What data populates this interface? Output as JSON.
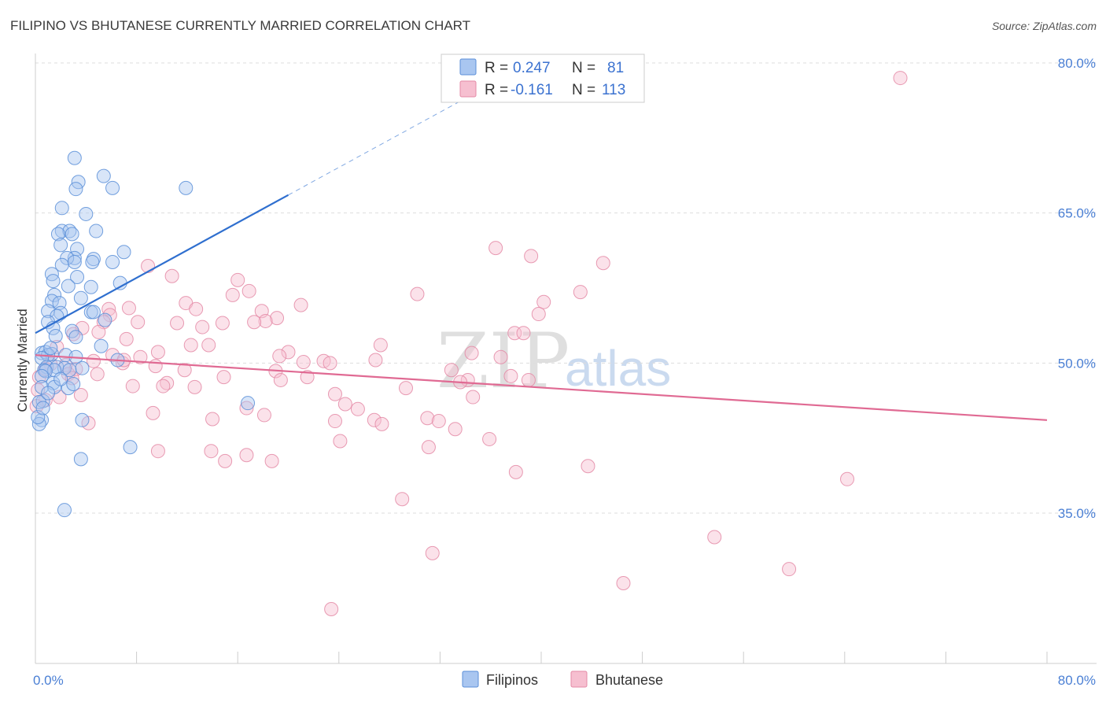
{
  "title": "FILIPINO VS BHUTANESE CURRENTLY MARRIED CORRELATION CHART",
  "source": "Source: ZipAtlas.com",
  "watermark": {
    "part1": "ZIP",
    "part2": "atlas"
  },
  "colors": {
    "filipinos_fill": "#a9c6f0",
    "filipinos_stroke": "#5b8fd8",
    "filipinos_line": "#2f6fcf",
    "bhutanese_fill": "#f6bfd0",
    "bhutanese_stroke": "#e48aa6",
    "bhutanese_line": "#e06a93",
    "tick_label": "#4a7fd4",
    "grid": "#dddddd"
  },
  "legend": {
    "rows": [
      {
        "r_label": "R =",
        "r_value": "0.247",
        "n_label": "N =",
        "n_value": "81"
      },
      {
        "r_label": "R =",
        "r_value": "-0.161",
        "n_label": "N =",
        "n_value": "113"
      }
    ]
  },
  "bottom_legend": [
    "Filipinos",
    "Bhutanese"
  ],
  "chart_data": {
    "type": "scatter",
    "title": "FILIPINO VS BHUTANESE CURRENTLY MARRIED CORRELATION CHART",
    "xlabel": "",
    "ylabel": "Currently Married",
    "xlim": [
      0,
      80
    ],
    "ylim": [
      20,
      83
    ],
    "x_tick_labels": [
      "0.0%",
      "80.0%"
    ],
    "y_ticks": [
      35,
      50,
      65,
      80
    ],
    "y_tick_labels": [
      "35.0%",
      "50.0%",
      "65.0%",
      "80.0%"
    ],
    "grid": true,
    "series": [
      {
        "name": "Filipinos",
        "R": 0.247,
        "N": 81,
        "trend": {
          "x": [
            0,
            20
          ],
          "y": [
            53.0,
            66.8
          ],
          "dashed_extension_to_x": 34
        },
        "points": [
          [
            3.1,
            70.5
          ],
          [
            5.4,
            68.7
          ],
          [
            3.4,
            68.1
          ],
          [
            6.1,
            67.5
          ],
          [
            11.9,
            67.5
          ],
          [
            3.2,
            67.4
          ],
          [
            2.1,
            65.5
          ],
          [
            4.0,
            64.9
          ],
          [
            2.1,
            63.2
          ],
          [
            2.7,
            63.2
          ],
          [
            4.8,
            63.2
          ],
          [
            2.9,
            62.9
          ],
          [
            1.8,
            62.9
          ],
          [
            2.0,
            61.8
          ],
          [
            3.3,
            61.4
          ],
          [
            7.0,
            61.1
          ],
          [
            3.1,
            60.5
          ],
          [
            4.6,
            60.4
          ],
          [
            2.5,
            60.5
          ],
          [
            3.1,
            60.1
          ],
          [
            6.1,
            60.1
          ],
          [
            4.5,
            60.1
          ],
          [
            2.1,
            59.8
          ],
          [
            1.3,
            58.9
          ],
          [
            3.3,
            58.6
          ],
          [
            1.4,
            58.2
          ],
          [
            2.6,
            57.7
          ],
          [
            6.7,
            58.0
          ],
          [
            4.4,
            57.6
          ],
          [
            1.5,
            56.8
          ],
          [
            1.3,
            56.2
          ],
          [
            3.6,
            56.5
          ],
          [
            1.9,
            56.0
          ],
          [
            1.0,
            55.2
          ],
          [
            4.4,
            55.1
          ],
          [
            4.6,
            55.1
          ],
          [
            2.0,
            55.0
          ],
          [
            1.7,
            54.7
          ],
          [
            5.5,
            54.3
          ],
          [
            1.0,
            54.1
          ],
          [
            1.4,
            53.5
          ],
          [
            2.9,
            53.2
          ],
          [
            1.6,
            52.7
          ],
          [
            3.2,
            52.6
          ],
          [
            5.2,
            51.7
          ],
          [
            0.5,
            51.0
          ],
          [
            0.8,
            51.1
          ],
          [
            1.3,
            50.9
          ],
          [
            1.0,
            50.8
          ],
          [
            2.4,
            50.8
          ],
          [
            0.5,
            50.5
          ],
          [
            3.2,
            50.6
          ],
          [
            6.5,
            50.3
          ],
          [
            0.9,
            49.6
          ],
          [
            1.7,
            49.6
          ],
          [
            2.3,
            49.5
          ],
          [
            3.7,
            49.5
          ],
          [
            0.7,
            49.3
          ],
          [
            1.5,
            49.3
          ],
          [
            2.7,
            49.3
          ],
          [
            0.8,
            49.2
          ],
          [
            0.5,
            48.7
          ],
          [
            1.4,
            48.0
          ],
          [
            0.5,
            47.6
          ],
          [
            2.6,
            47.5
          ],
          [
            1.5,
            47.6
          ],
          [
            0.6,
            46.2
          ],
          [
            0.3,
            46.1
          ],
          [
            16.8,
            46.0
          ],
          [
            0.5,
            44.3
          ],
          [
            3.7,
            44.3
          ],
          [
            0.3,
            43.9
          ],
          [
            7.5,
            41.6
          ],
          [
            3.6,
            40.4
          ],
          [
            2.3,
            35.3
          ],
          [
            1.0,
            47.0
          ],
          [
            0.2,
            44.6
          ],
          [
            0.6,
            45.5
          ],
          [
            2.0,
            48.4
          ],
          [
            3.0,
            47.9
          ],
          [
            1.2,
            51.5
          ]
        ]
      },
      {
        "name": "Bhutanese",
        "R": -0.161,
        "N": 113,
        "trend": {
          "x": [
            0,
            80
          ],
          "y": [
            50.8,
            44.3
          ]
        },
        "points": [
          [
            68.4,
            78.5
          ],
          [
            36.4,
            61.5
          ],
          [
            39.2,
            60.7
          ],
          [
            44.9,
            60.0
          ],
          [
            8.9,
            59.7
          ],
          [
            10.8,
            58.7
          ],
          [
            16.0,
            58.3
          ],
          [
            16.9,
            57.2
          ],
          [
            15.6,
            56.8
          ],
          [
            30.2,
            56.9
          ],
          [
            43.1,
            57.1
          ],
          [
            40.2,
            56.1
          ],
          [
            11.9,
            56.0
          ],
          [
            21.0,
            55.8
          ],
          [
            7.4,
            55.5
          ],
          [
            5.8,
            55.4
          ],
          [
            12.7,
            55.4
          ],
          [
            17.9,
            55.2
          ],
          [
            5.9,
            54.8
          ],
          [
            39.8,
            54.9
          ],
          [
            19.1,
            54.5
          ],
          [
            18.2,
            54.2
          ],
          [
            8.1,
            54.1
          ],
          [
            17.3,
            54.1
          ],
          [
            14.8,
            54.0
          ],
          [
            11.2,
            54.0
          ],
          [
            5.4,
            54.1
          ],
          [
            3.7,
            53.5
          ],
          [
            13.2,
            53.6
          ],
          [
            37.9,
            53.0
          ],
          [
            38.6,
            53.0
          ],
          [
            3.0,
            52.9
          ],
          [
            7.2,
            52.4
          ],
          [
            27.3,
            51.8
          ],
          [
            12.3,
            51.8
          ],
          [
            13.7,
            51.8
          ],
          [
            9.7,
            51.1
          ],
          [
            20.0,
            51.1
          ],
          [
            34.5,
            51.0
          ],
          [
            6.1,
            50.8
          ],
          [
            19.3,
            50.7
          ],
          [
            8.3,
            50.6
          ],
          [
            36.8,
            50.6
          ],
          [
            26.9,
            50.3
          ],
          [
            21.2,
            50.1
          ],
          [
            22.8,
            50.2
          ],
          [
            23.3,
            50.0
          ],
          [
            9.5,
            49.7
          ],
          [
            6.9,
            50.0
          ],
          [
            2.4,
            49.8
          ],
          [
            3.2,
            49.4
          ],
          [
            11.8,
            49.3
          ],
          [
            19.0,
            49.2
          ],
          [
            32.9,
            49.3
          ],
          [
            4.9,
            48.9
          ],
          [
            14.9,
            48.6
          ],
          [
            21.5,
            48.6
          ],
          [
            37.6,
            48.7
          ],
          [
            19.4,
            48.3
          ],
          [
            34.2,
            48.3
          ],
          [
            33.6,
            48.1
          ],
          [
            39.0,
            48.3
          ],
          [
            10.4,
            48.0
          ],
          [
            10.1,
            47.7
          ],
          [
            12.6,
            47.6
          ],
          [
            7.7,
            47.7
          ],
          [
            29.3,
            47.5
          ],
          [
            3.6,
            46.8
          ],
          [
            1.9,
            46.6
          ],
          [
            23.7,
            46.9
          ],
          [
            34.6,
            46.6
          ],
          [
            0.8,
            46.3
          ],
          [
            24.5,
            45.9
          ],
          [
            16.7,
            45.5
          ],
          [
            25.5,
            45.4
          ],
          [
            9.3,
            45.0
          ],
          [
            18.1,
            44.8
          ],
          [
            31.0,
            44.5
          ],
          [
            14.0,
            44.4
          ],
          [
            26.8,
            44.3
          ],
          [
            23.7,
            44.2
          ],
          [
            27.4,
            43.9
          ],
          [
            31.9,
            44.2
          ],
          [
            4.2,
            44.0
          ],
          [
            33.2,
            43.4
          ],
          [
            24.1,
            42.2
          ],
          [
            35.9,
            42.4
          ],
          [
            31.1,
            41.6
          ],
          [
            9.7,
            41.2
          ],
          [
            13.9,
            41.2
          ],
          [
            16.7,
            40.8
          ],
          [
            15.0,
            40.2
          ],
          [
            18.7,
            40.2
          ],
          [
            43.7,
            39.7
          ],
          [
            38.0,
            39.1
          ],
          [
            64.2,
            38.4
          ],
          [
            29.0,
            36.4
          ],
          [
            31.4,
            31.0
          ],
          [
            53.7,
            32.6
          ],
          [
            59.6,
            29.4
          ],
          [
            46.5,
            28.0
          ],
          [
            23.4,
            25.4
          ],
          [
            0.3,
            48.6
          ],
          [
            1.2,
            49.9
          ],
          [
            2.6,
            48.9
          ],
          [
            4.6,
            50.2
          ],
          [
            0.2,
            47.3
          ],
          [
            0.1,
            45.7
          ],
          [
            7.0,
            50.3
          ],
          [
            1.7,
            51.6
          ],
          [
            0.8,
            49.4
          ],
          [
            2.9,
            48.5
          ],
          [
            5.0,
            53.1
          ]
        ]
      }
    ]
  }
}
